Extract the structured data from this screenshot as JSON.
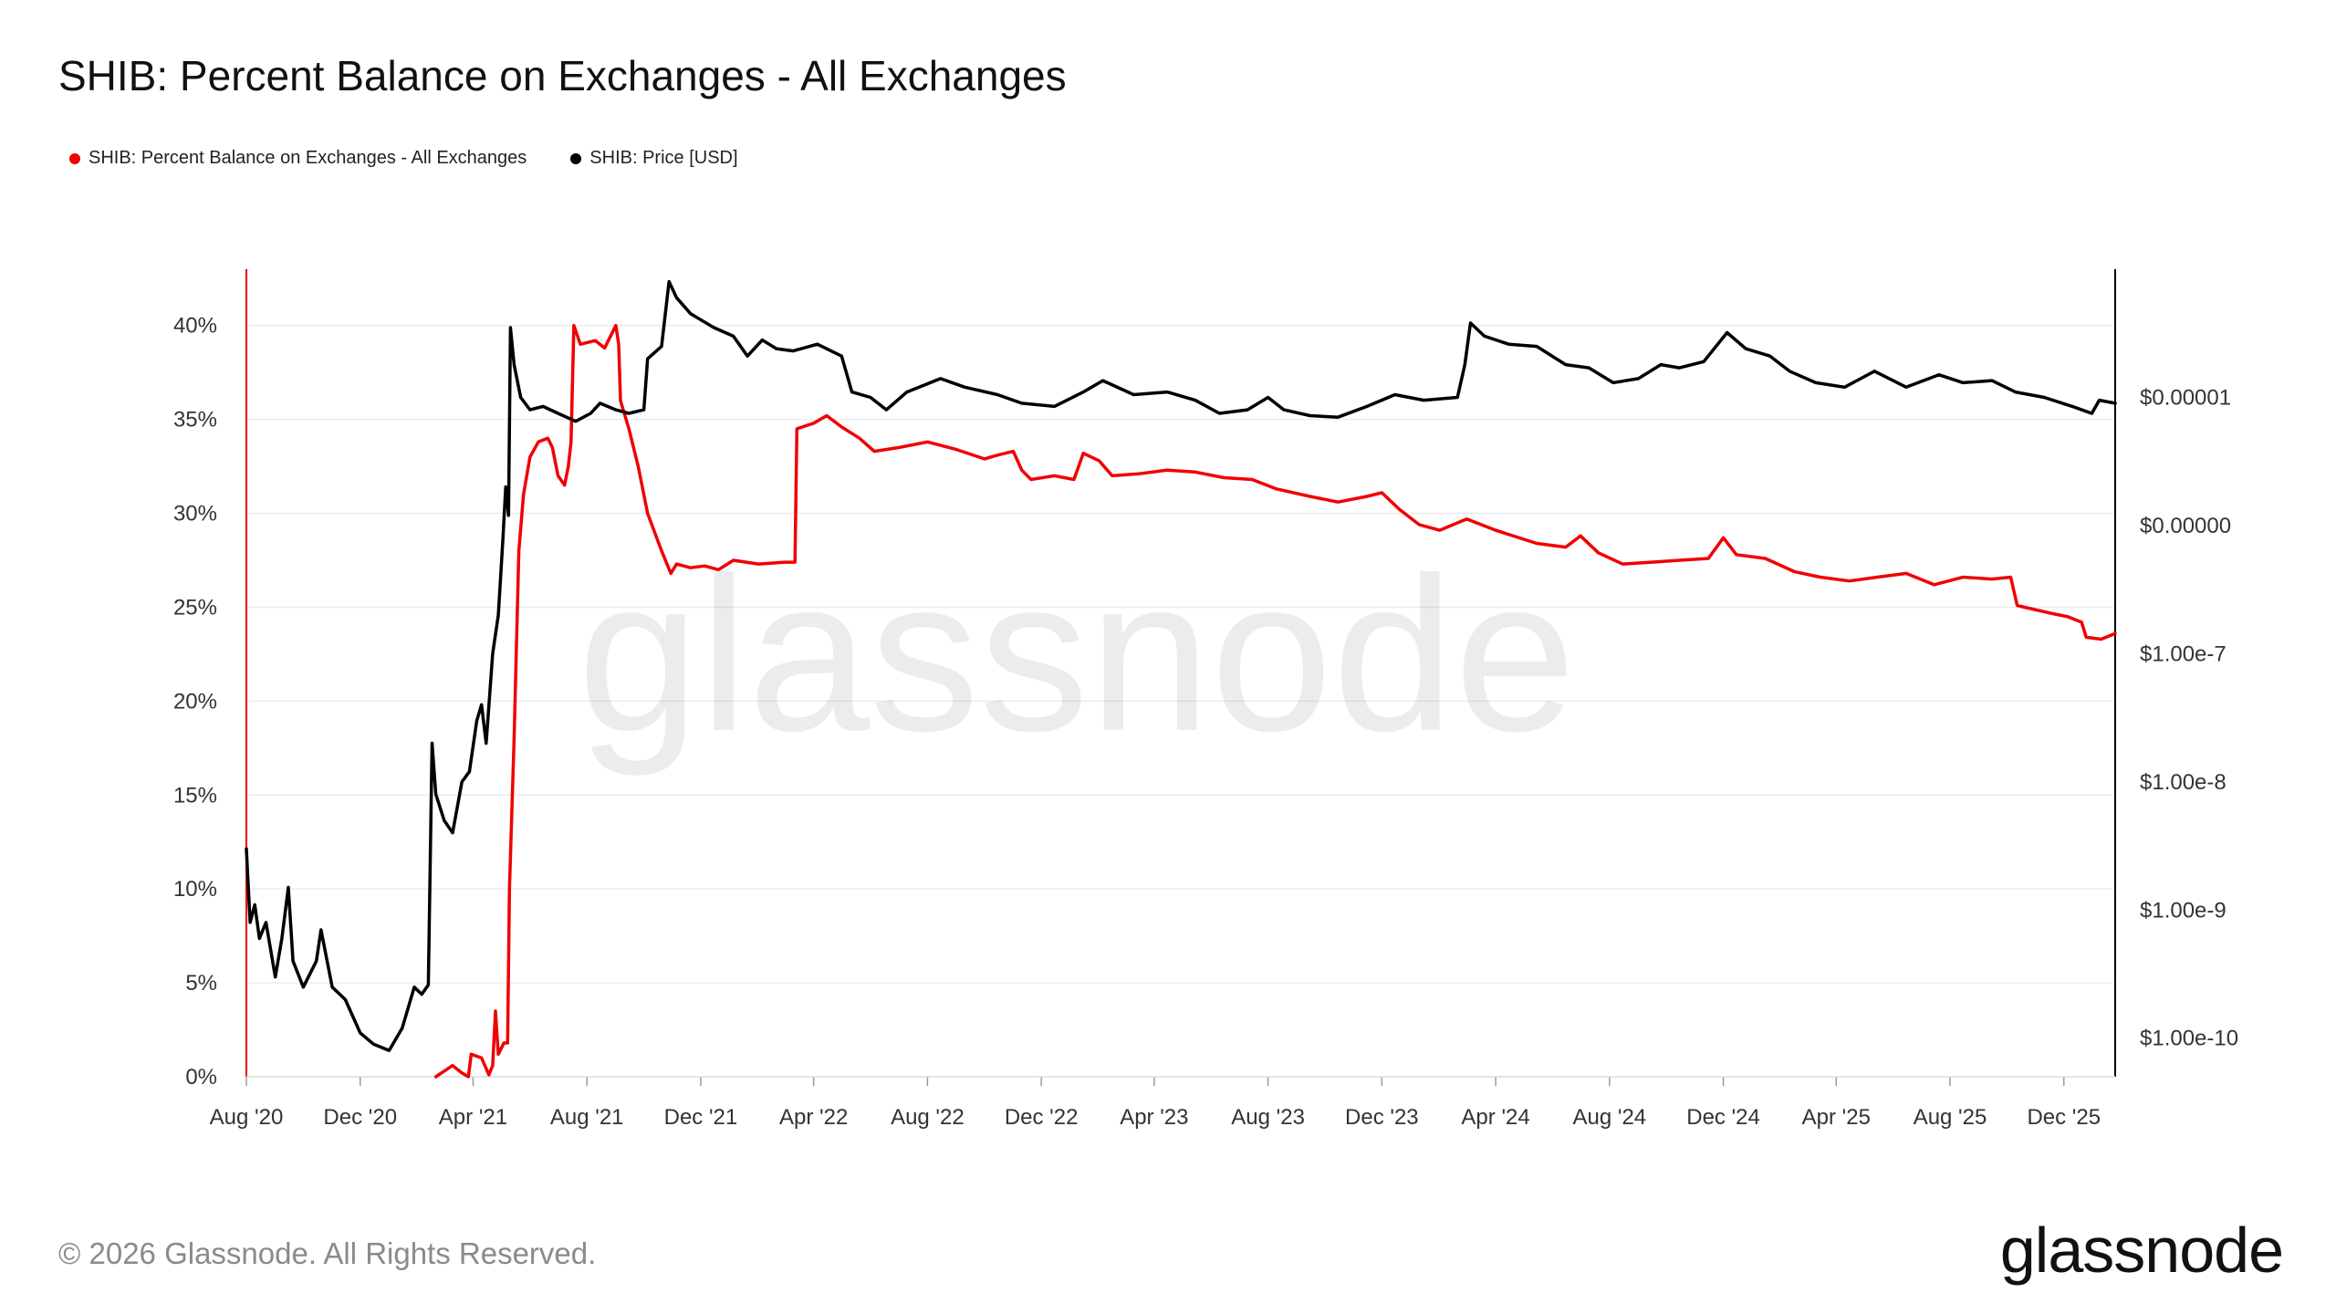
{
  "title": "SHIB: Percent Balance on Exchanges - All Exchanges",
  "watermark": "glassnode",
  "footer": {
    "copyright": "© 2026 Glassnode. All Rights Reserved.",
    "brand": "glassnode"
  },
  "colors": {
    "balance": "#f00000",
    "price": "#000000",
    "grid": "#ececec",
    "text": "#333333"
  },
  "chart_data": {
    "type": "line",
    "title": "SHIB: Percent Balance on Exchanges - All Exchanges",
    "legend_placement": "top-left",
    "grid": true,
    "x_axis": {
      "range": [
        "2020-08-01",
        "2026-01-25"
      ],
      "ticks": [
        {
          "date": "2020-08-01",
          "label": "Aug '20"
        },
        {
          "date": "2020-12-01",
          "label": "Dec '20"
        },
        {
          "date": "2021-04-01",
          "label": "Apr '21"
        },
        {
          "date": "2021-08-01",
          "label": "Aug '21"
        },
        {
          "date": "2021-12-01",
          "label": "Dec '21"
        },
        {
          "date": "2022-04-01",
          "label": "Apr '22"
        },
        {
          "date": "2022-08-01",
          "label": "Aug '22"
        },
        {
          "date": "2022-12-01",
          "label": "Dec '22"
        },
        {
          "date": "2023-04-01",
          "label": "Apr '23"
        },
        {
          "date": "2023-08-01",
          "label": "Aug '23"
        },
        {
          "date": "2023-12-01",
          "label": "Dec '23"
        },
        {
          "date": "2024-04-01",
          "label": "Apr '24"
        },
        {
          "date": "2024-08-01",
          "label": "Aug '24"
        },
        {
          "date": "2024-12-01",
          "label": "Dec '24"
        },
        {
          "date": "2025-04-01",
          "label": "Apr '25"
        },
        {
          "date": "2025-08-01",
          "label": "Aug '25"
        },
        {
          "date": "2025-12-01",
          "label": "Dec '25"
        }
      ]
    },
    "y_left": {
      "unit": "%",
      "range": [
        0,
        43
      ],
      "scale": "linear",
      "ticks": [
        {
          "value": 0,
          "label": "0%"
        },
        {
          "value": 5,
          "label": "5%"
        },
        {
          "value": 10,
          "label": "10%"
        },
        {
          "value": 15,
          "label": "15%"
        },
        {
          "value": 20,
          "label": "20%"
        },
        {
          "value": 25,
          "label": "25%"
        },
        {
          "value": 30,
          "label": "30%"
        },
        {
          "value": 35,
          "label": "35%"
        },
        {
          "value": 40,
          "label": "40%"
        }
      ]
    },
    "y_right": {
      "unit": "USD",
      "scale": "log",
      "range": [
        5e-11,
        0.0001
      ],
      "ticks": [
        {
          "value": 1e-05,
          "label": "$0.00001"
        },
        {
          "value": 1e-06,
          "label": "$0.00000"
        },
        {
          "value": 1e-07,
          "label": "$1.00e-7"
        },
        {
          "value": 1e-08,
          "label": "$1.00e-8"
        },
        {
          "value": 1e-09,
          "label": "$1.00e-9"
        },
        {
          "value": 1e-10,
          "label": "$1.00e-10"
        }
      ]
    },
    "series": [
      {
        "name": "SHIB: Percent Balance on Exchanges - All Exchanges",
        "axis": "left",
        "color": "#f00000",
        "points": [
          [
            "2021-02-20",
            0.0
          ],
          [
            "2021-03-01",
            0.3
          ],
          [
            "2021-03-10",
            0.6
          ],
          [
            "2021-03-20",
            0.2
          ],
          [
            "2021-03-27",
            0.0
          ],
          [
            "2021-03-30",
            1.2
          ],
          [
            "2021-04-10",
            1.0
          ],
          [
            "2021-04-18",
            0.1
          ],
          [
            "2021-04-22",
            0.6
          ],
          [
            "2021-04-25",
            3.5
          ],
          [
            "2021-04-28",
            1.2
          ],
          [
            "2021-05-04",
            1.8
          ],
          [
            "2021-05-08",
            1.8
          ],
          [
            "2021-05-10",
            10.0
          ],
          [
            "2021-05-15",
            18.0
          ],
          [
            "2021-05-20",
            28.0
          ],
          [
            "2021-05-25",
            31.0
          ],
          [
            "2021-06-01",
            33.0
          ],
          [
            "2021-06-10",
            33.8
          ],
          [
            "2021-06-20",
            34.0
          ],
          [
            "2021-06-25",
            33.5
          ],
          [
            "2021-07-01",
            32.0
          ],
          [
            "2021-07-08",
            31.5
          ],
          [
            "2021-07-12",
            32.5
          ],
          [
            "2021-07-15",
            33.8
          ],
          [
            "2021-07-18",
            40.0
          ],
          [
            "2021-07-25",
            39.0
          ],
          [
            "2021-08-10",
            39.2
          ],
          [
            "2021-08-20",
            38.8
          ],
          [
            "2021-09-01",
            40.0
          ],
          [
            "2021-09-04",
            39.0
          ],
          [
            "2021-09-06",
            36.0
          ],
          [
            "2021-09-15",
            34.5
          ],
          [
            "2021-09-25",
            32.5
          ],
          [
            "2021-10-05",
            30.0
          ],
          [
            "2021-10-20",
            28.0
          ],
          [
            "2021-10-30",
            26.8
          ],
          [
            "2021-11-05",
            27.3
          ],
          [
            "2021-11-20",
            27.1
          ],
          [
            "2021-12-05",
            27.2
          ],
          [
            "2021-12-20",
            27.0
          ],
          [
            "2022-01-05",
            27.5
          ],
          [
            "2022-02-01",
            27.3
          ],
          [
            "2022-03-01",
            27.4
          ],
          [
            "2022-03-12",
            27.4
          ],
          [
            "2022-03-14",
            34.5
          ],
          [
            "2022-04-01",
            34.8
          ],
          [
            "2022-04-15",
            35.2
          ],
          [
            "2022-05-01",
            34.6
          ],
          [
            "2022-05-20",
            34.0
          ],
          [
            "2022-06-05",
            33.3
          ],
          [
            "2022-07-01",
            33.5
          ],
          [
            "2022-08-01",
            33.8
          ],
          [
            "2022-09-01",
            33.4
          ],
          [
            "2022-10-01",
            32.9
          ],
          [
            "2022-10-15",
            33.1
          ],
          [
            "2022-11-01",
            33.3
          ],
          [
            "2022-11-10",
            32.3
          ],
          [
            "2022-11-20",
            31.8
          ],
          [
            "2022-12-15",
            32.0
          ],
          [
            "2023-01-05",
            31.8
          ],
          [
            "2023-01-15",
            33.2
          ],
          [
            "2023-02-01",
            32.8
          ],
          [
            "2023-02-15",
            32.0
          ],
          [
            "2023-03-15",
            32.1
          ],
          [
            "2023-04-15",
            32.3
          ],
          [
            "2023-05-15",
            32.2
          ],
          [
            "2023-06-15",
            31.9
          ],
          [
            "2023-07-15",
            31.8
          ],
          [
            "2023-08-10",
            31.3
          ],
          [
            "2023-09-15",
            30.9
          ],
          [
            "2023-10-15",
            30.6
          ],
          [
            "2023-11-15",
            30.9
          ],
          [
            "2023-12-01",
            31.1
          ],
          [
            "2023-12-20",
            30.2
          ],
          [
            "2024-01-10",
            29.4
          ],
          [
            "2024-02-01",
            29.1
          ],
          [
            "2024-03-01",
            29.7
          ],
          [
            "2024-04-01",
            29.1
          ],
          [
            "2024-05-15",
            28.4
          ],
          [
            "2024-06-15",
            28.2
          ],
          [
            "2024-07-01",
            28.8
          ],
          [
            "2024-07-20",
            27.9
          ],
          [
            "2024-08-15",
            27.3
          ],
          [
            "2024-09-15",
            27.4
          ],
          [
            "2024-10-15",
            27.5
          ],
          [
            "2024-11-15",
            27.6
          ],
          [
            "2024-12-01",
            28.7
          ],
          [
            "2024-12-15",
            27.8
          ],
          [
            "2025-01-15",
            27.6
          ],
          [
            "2025-02-15",
            26.9
          ],
          [
            "2025-03-15",
            26.6
          ],
          [
            "2025-04-15",
            26.4
          ],
          [
            "2025-05-15",
            26.6
          ],
          [
            "2025-06-15",
            26.8
          ],
          [
            "2025-07-15",
            26.2
          ],
          [
            "2025-08-15",
            26.6
          ],
          [
            "2025-09-15",
            26.5
          ],
          [
            "2025-10-05",
            26.6
          ],
          [
            "2025-10-12",
            25.1
          ],
          [
            "2025-10-20",
            25.0
          ],
          [
            "2025-11-15",
            24.7
          ],
          [
            "2025-12-05",
            24.5
          ],
          [
            "2025-12-20",
            24.2
          ],
          [
            "2025-12-25",
            23.4
          ],
          [
            "2026-01-10",
            23.3
          ],
          [
            "2026-01-25",
            23.6
          ]
        ]
      },
      {
        "name": "SHIB: Price [USD]",
        "axis": "right",
        "color": "#000000",
        "points": [
          [
            "2020-08-01",
            3e-09
          ],
          [
            "2020-08-05",
            8e-10
          ],
          [
            "2020-08-10",
            1.1e-09
          ],
          [
            "2020-08-15",
            6e-10
          ],
          [
            "2020-08-22",
            8e-10
          ],
          [
            "2020-09-01",
            3e-10
          ],
          [
            "2020-09-08",
            6e-10
          ],
          [
            "2020-09-15",
            1.5e-09
          ],
          [
            "2020-09-20",
            4e-10
          ],
          [
            "2020-10-01",
            2.5e-10
          ],
          [
            "2020-10-15",
            4e-10
          ],
          [
            "2020-10-20",
            7e-10
          ],
          [
            "2020-11-01",
            2.5e-10
          ],
          [
            "2020-11-15",
            2e-10
          ],
          [
            "2020-12-01",
            1.1e-10
          ],
          [
            "2020-12-15",
            9e-11
          ],
          [
            "2021-01-01",
            8e-11
          ],
          [
            "2021-01-15",
            1.2e-10
          ],
          [
            "2021-01-28",
            2.5e-10
          ],
          [
            "2021-02-05",
            2.2e-10
          ],
          [
            "2021-02-12",
            2.6e-10
          ],
          [
            "2021-02-16",
            2e-08
          ],
          [
            "2021-02-20",
            8e-09
          ],
          [
            "2021-03-01",
            5e-09
          ],
          [
            "2021-03-10",
            4e-09
          ],
          [
            "2021-03-20",
            1e-08
          ],
          [
            "2021-03-28",
            1.2e-08
          ],
          [
            "2021-04-05",
            3e-08
          ],
          [
            "2021-04-10",
            4e-08
          ],
          [
            "2021-04-15",
            2e-08
          ],
          [
            "2021-04-22",
            1e-07
          ],
          [
            "2021-04-28",
            2e-07
          ],
          [
            "2021-05-03",
            8e-07
          ],
          [
            "2021-05-06",
            2e-06
          ],
          [
            "2021-05-09",
            1.2e-06
          ],
          [
            "2021-05-11",
            3.5e-05
          ],
          [
            "2021-05-15",
            1.8e-05
          ],
          [
            "2021-05-22",
            1e-05
          ],
          [
            "2021-06-01",
            8e-06
          ],
          [
            "2021-06-15",
            8.5e-06
          ],
          [
            "2021-07-01",
            7.5e-06
          ],
          [
            "2021-07-20",
            6.5e-06
          ],
          [
            "2021-08-05",
            7.5e-06
          ],
          [
            "2021-08-15",
            9e-06
          ],
          [
            "2021-09-01",
            8e-06
          ],
          [
            "2021-09-15",
            7.5e-06
          ],
          [
            "2021-10-01",
            8e-06
          ],
          [
            "2021-10-05",
            2e-05
          ],
          [
            "2021-10-20",
            2.5e-05
          ],
          [
            "2021-10-28",
            8e-05
          ],
          [
            "2021-11-05",
            6e-05
          ],
          [
            "2021-11-20",
            4.5e-05
          ],
          [
            "2021-12-15",
            3.5e-05
          ],
          [
            "2022-01-05",
            3e-05
          ],
          [
            "2022-01-20",
            2.1e-05
          ],
          [
            "2022-02-05",
            2.8e-05
          ],
          [
            "2022-02-20",
            2.4e-05
          ],
          [
            "2022-03-10",
            2.3e-05
          ],
          [
            "2022-04-05",
            2.6e-05
          ],
          [
            "2022-05-01",
            2.1e-05
          ],
          [
            "2022-05-12",
            1.1e-05
          ],
          [
            "2022-06-01",
            1e-05
          ],
          [
            "2022-06-18",
            8e-06
          ],
          [
            "2022-07-10",
            1.1e-05
          ],
          [
            "2022-08-15",
            1.4e-05
          ],
          [
            "2022-09-10",
            1.2e-05
          ],
          [
            "2022-10-15",
            1.05e-05
          ],
          [
            "2022-11-10",
            9e-06
          ],
          [
            "2022-12-15",
            8.5e-06
          ],
          [
            "2023-01-15",
            1.1e-05
          ],
          [
            "2023-02-05",
            1.35e-05
          ],
          [
            "2023-03-10",
            1.05e-05
          ],
          [
            "2023-04-15",
            1.1e-05
          ],
          [
            "2023-05-15",
            9.5e-06
          ],
          [
            "2023-06-10",
            7.5e-06
          ],
          [
            "2023-07-10",
            8e-06
          ],
          [
            "2023-08-01",
            1e-05
          ],
          [
            "2023-08-18",
            8e-06
          ],
          [
            "2023-09-15",
            7.2e-06
          ],
          [
            "2023-10-15",
            7e-06
          ],
          [
            "2023-11-15",
            8.5e-06
          ],
          [
            "2023-12-15",
            1.05e-05
          ],
          [
            "2024-01-15",
            9.5e-06
          ],
          [
            "2024-02-20",
            1e-05
          ],
          [
            "2024-02-28",
            1.8e-05
          ],
          [
            "2024-03-05",
            3.8e-05
          ],
          [
            "2024-03-20",
            3e-05
          ],
          [
            "2024-04-15",
            2.6e-05
          ],
          [
            "2024-05-15",
            2.5e-05
          ],
          [
            "2024-06-15",
            1.8e-05
          ],
          [
            "2024-07-10",
            1.7e-05
          ],
          [
            "2024-08-05",
            1.3e-05
          ],
          [
            "2024-09-01",
            1.4e-05
          ],
          [
            "2024-09-25",
            1.8e-05
          ],
          [
            "2024-10-15",
            1.7e-05
          ],
          [
            "2024-11-10",
            1.9e-05
          ],
          [
            "2024-12-05",
            3.2e-05
          ],
          [
            "2024-12-25",
            2.4e-05
          ],
          [
            "2025-01-20",
            2.1e-05
          ],
          [
            "2025-02-10",
            1.6e-05
          ],
          [
            "2025-03-10",
            1.3e-05
          ],
          [
            "2025-04-10",
            1.2e-05
          ],
          [
            "2025-05-12",
            1.6e-05
          ],
          [
            "2025-06-15",
            1.2e-05
          ],
          [
            "2025-07-20",
            1.5e-05
          ],
          [
            "2025-08-15",
            1.3e-05
          ],
          [
            "2025-09-15",
            1.35e-05
          ],
          [
            "2025-10-10",
            1.1e-05
          ],
          [
            "2025-11-10",
            1e-05
          ],
          [
            "2025-12-10",
            8.5e-06
          ],
          [
            "2025-12-31",
            7.5e-06
          ],
          [
            "2026-01-08",
            9.5e-06
          ],
          [
            "2026-01-25",
            9e-06
          ]
        ]
      }
    ]
  }
}
